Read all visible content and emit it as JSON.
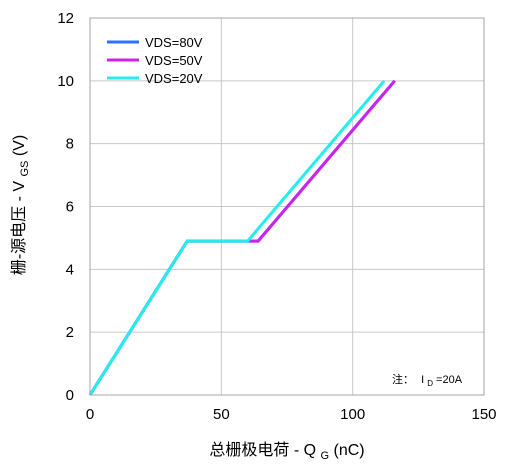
{
  "chart_data": {
    "type": "line",
    "title": "",
    "xlabel": "总栅极电荷 - Q",
    "xlabel_sub": "G",
    "xlabel_tail": " (nC)",
    "ylabel": "栅-源电压 - V",
    "ylabel_sub": "GS",
    "ylabel_tail": "(V)",
    "xlim": [
      0,
      150
    ],
    "ylim": [
      0,
      12
    ],
    "xticks": [
      "0",
      "50",
      "100",
      "150"
    ],
    "yticks": [
      "0",
      "2",
      "4",
      "6",
      "8",
      "10",
      "12"
    ],
    "grid": true,
    "legend_position": "top-left",
    "annotation": {
      "prefix": "注：",
      "main": "I",
      "sub": "D",
      "tail": "=20A"
    },
    "series": [
      {
        "name": "VDS=80V",
        "color": "#2f6fff",
        "x": [
          0,
          37,
          64,
          116
        ],
        "y": [
          0,
          4.9,
          4.9,
          10
        ]
      },
      {
        "name": "VDS=50V",
        "color": "#cc22ee",
        "x": [
          0,
          37,
          64,
          116
        ],
        "y": [
          0,
          4.9,
          4.9,
          10
        ]
      },
      {
        "name": "VDS=20V",
        "color": "#22eeee",
        "x": [
          0,
          37,
          60,
          112
        ],
        "y": [
          0,
          4.9,
          4.9,
          10
        ]
      }
    ]
  }
}
